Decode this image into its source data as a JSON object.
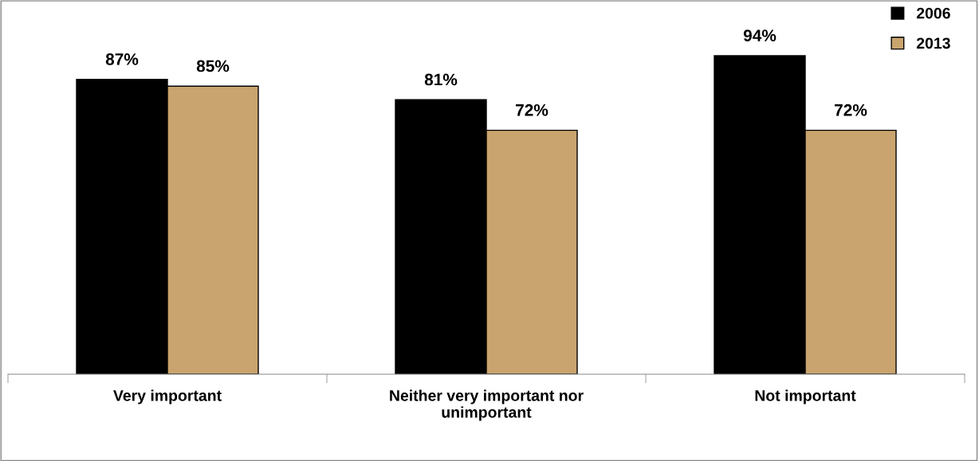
{
  "chart_data": {
    "type": "bar",
    "categories": [
      "Very important",
      "Neither very important nor\nunimportant",
      "Not important"
    ],
    "series": [
      {
        "name": "2006",
        "color": "#000000",
        "values": [
          87,
          81,
          94
        ],
        "value_labels": [
          "87%",
          "81%",
          "94%"
        ]
      },
      {
        "name": "2013",
        "color": "#c9a46e",
        "values": [
          85,
          72,
          72
        ],
        "value_labels": [
          "85%",
          "72%",
          "72%"
        ]
      }
    ],
    "tick_labels": "x",
    "legend": "top right",
    "grid": false
  }
}
